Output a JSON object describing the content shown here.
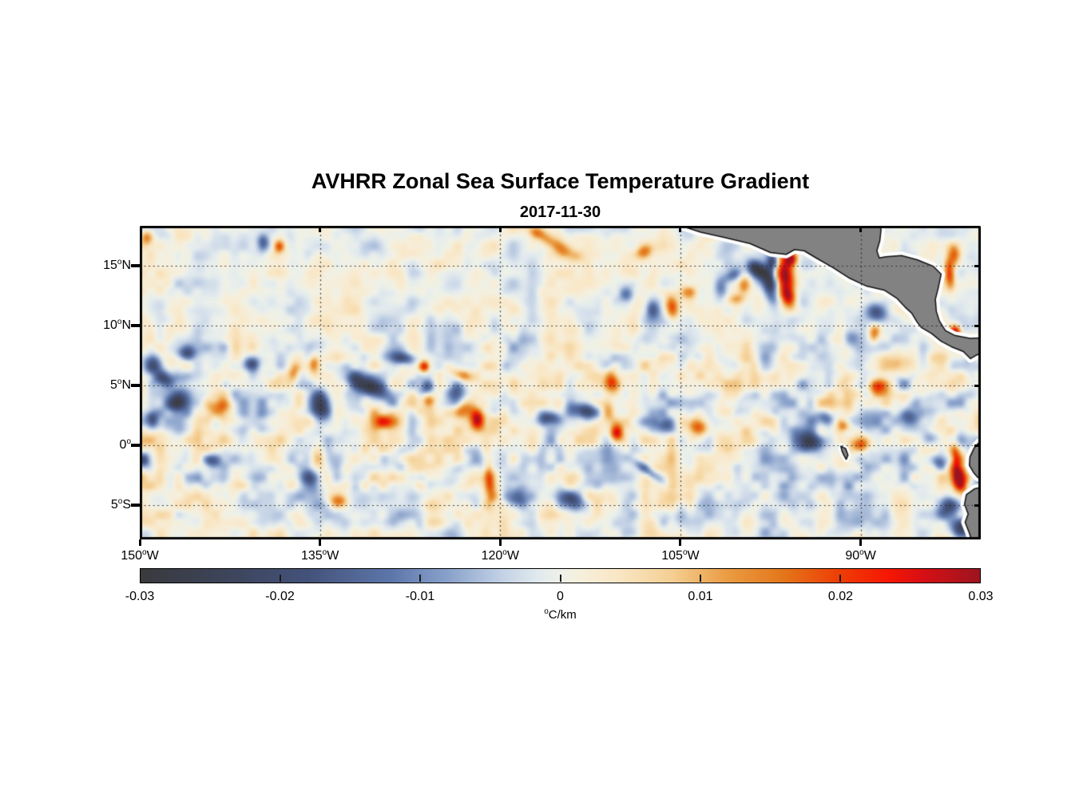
{
  "page": {
    "title": "AVHRR Zonal Sea Surface Temperature Gradient",
    "subtitle": "2017-11-30"
  },
  "chart_data": {
    "type": "heatmap",
    "title": "AVHRR Zonal Sea Surface Temperature Gradient",
    "subtitle": "2017-11-30",
    "xlabel": "",
    "ylabel": "",
    "lon_range": [
      -150,
      -80
    ],
    "lat_range": [
      -7.83,
      18.33
    ],
    "grid_on": true,
    "x_ticks": [
      {
        "num": "150",
        "suf": "W",
        "lon": -150
      },
      {
        "num": "135",
        "suf": "W",
        "lon": -135
      },
      {
        "num": "120",
        "suf": "W",
        "lon": -120
      },
      {
        "num": "105",
        "suf": "W",
        "lon": -105
      },
      {
        "num": "90",
        "suf": "W",
        "lon": -90
      }
    ],
    "y_ticks": [
      {
        "num": "15",
        "suf": "N",
        "lat": 15
      },
      {
        "num": "10",
        "suf": "N",
        "lat": 10
      },
      {
        "num": "5",
        "suf": "N",
        "lat": 5
      },
      {
        "num": "0",
        "suf": "",
        "lat": 0
      },
      {
        "num": "5",
        "suf": "S",
        "lat": -5
      }
    ],
    "grid_lons": [
      -135,
      -120,
      -105,
      -90
    ],
    "grid_lats": [
      15,
      10,
      5,
      0,
      -5
    ],
    "colorbar": {
      "min": -0.03,
      "max": 0.03,
      "tick_labels": [
        "-0.03",
        "-0.02",
        "-0.01",
        "0",
        "0.01",
        "0.02",
        "0.03"
      ],
      "tick_values": [
        -0.03,
        -0.02,
        -0.01,
        0,
        0.01,
        0.02,
        0.03
      ],
      "inner_tick_values": [
        -0.02,
        -0.01,
        0,
        0.01,
        0.02
      ],
      "unit_prefix": "o",
      "unit": "C/km"
    },
    "colormap_stops": [
      [
        -0.03,
        "#3a3a3e"
      ],
      [
        -0.024,
        "#3d4459"
      ],
      [
        -0.018,
        "#44527a"
      ],
      [
        -0.012,
        "#5d77ab"
      ],
      [
        -0.008,
        "#8aa2cb"
      ],
      [
        -0.004,
        "#c5d3e6"
      ],
      [
        -0.0015,
        "#e2eaee"
      ],
      [
        0.0,
        "#edf1e9"
      ],
      [
        0.0015,
        "#f6efdc"
      ],
      [
        0.004,
        "#f9e7c6"
      ],
      [
        0.008,
        "#f4cf93"
      ],
      [
        0.012,
        "#ea9b42"
      ],
      [
        0.016,
        "#e4751a"
      ],
      [
        0.02,
        "#ee3d05"
      ],
      [
        0.0235,
        "#f51603"
      ],
      [
        0.026,
        "#d60f15"
      ],
      [
        0.03,
        "#9c1420"
      ]
    ],
    "land_color": "#828282",
    "coast_color": "#111111",
    "halo_color": "#ffffff",
    "grid_color": "#2b2b2b",
    "frame_color": "#000000",
    "land_polygons": {
      "central_america": [
        [
          -105.4,
          18.9
        ],
        [
          -105.0,
          18.35
        ],
        [
          -103.3,
          17.8
        ],
        [
          -101.5,
          17.4
        ],
        [
          -99.2,
          16.85
        ],
        [
          -97.5,
          16.1
        ],
        [
          -96.2,
          15.95
        ],
        [
          -95.5,
          16.35
        ],
        [
          -94.7,
          16.25
        ],
        [
          -93.7,
          15.65
        ],
        [
          -92.3,
          14.85
        ],
        [
          -90.9,
          13.95
        ],
        [
          -89.5,
          13.3
        ],
        [
          -88.0,
          12.95
        ],
        [
          -87.0,
          12.3
        ],
        [
          -86.3,
          11.55
        ],
        [
          -85.75,
          11.05
        ],
        [
          -85.3,
          10.3
        ],
        [
          -84.95,
          9.85
        ],
        [
          -84.1,
          9.35
        ],
        [
          -83.3,
          8.7
        ],
        [
          -82.45,
          8.25
        ],
        [
          -81.45,
          7.85
        ],
        [
          -80.85,
          7.25
        ],
        [
          -80.35,
          7.55
        ],
        [
          -79.6,
          7.9
        ],
        [
          -79.6,
          9.0
        ],
        [
          -80.9,
          8.95
        ],
        [
          -82.2,
          9.2
        ],
        [
          -82.95,
          9.6
        ],
        [
          -83.45,
          10.4
        ],
        [
          -83.7,
          11.2
        ],
        [
          -83.78,
          12.2
        ],
        [
          -83.55,
          13.1
        ],
        [
          -83.3,
          14.3
        ],
        [
          -83.95,
          14.95
        ],
        [
          -85.3,
          15.5
        ],
        [
          -86.6,
          15.85
        ],
        [
          -87.9,
          15.75
        ],
        [
          -88.45,
          15.65
        ],
        [
          -88.65,
          16.25
        ],
        [
          -88.4,
          17.1
        ],
        [
          -88.3,
          18.0
        ],
        [
          -88.5,
          18.9
        ]
      ],
      "south_america": [
        [
          -79.6,
          0.35
        ],
        [
          -80.1,
          0.3
        ],
        [
          -80.55,
          -0.2
        ],
        [
          -80.9,
          -0.95
        ],
        [
          -80.95,
          -1.65
        ],
        [
          -80.6,
          -2.25
        ],
        [
          -80.25,
          -2.65
        ],
        [
          -79.6,
          -2.8
        ],
        [
          -79.6,
          -3.4
        ],
        [
          -80.5,
          -3.6
        ],
        [
          -81.2,
          -4.1
        ],
        [
          -81.35,
          -4.9
        ],
        [
          -81.05,
          -5.7
        ],
        [
          -81.3,
          -6.4
        ],
        [
          -80.95,
          -7.3
        ],
        [
          -80.6,
          -8.4
        ],
        [
          -79.6,
          -8.4
        ]
      ],
      "galapagos": [
        [
          -91.65,
          -0.05
        ],
        [
          -91.25,
          -0.25
        ],
        [
          -91.05,
          -0.8
        ],
        [
          -91.2,
          -1.15
        ],
        [
          -91.4,
          -0.8
        ],
        [
          -91.55,
          -0.45
        ]
      ]
    },
    "features_format": "[lon, lat, value_C_per_km, radius_lon_deg, radius_lat_deg, rotation_deg]",
    "features": [
      [
        -97.6,
        13.6,
        -0.03,
        0.75,
        1.7,
        12
      ],
      [
        -98.7,
        14.7,
        -0.026,
        1.0,
        0.65,
        -38
      ],
      [
        -97.3,
        15.4,
        -0.022,
        0.5,
        0.8,
        0
      ],
      [
        -96.3,
        14.0,
        0.031,
        0.8,
        1.8,
        4
      ],
      [
        -96.0,
        12.3,
        0.02,
        0.65,
        0.9,
        18
      ],
      [
        -95.8,
        15.6,
        0.026,
        0.55,
        0.6,
        0
      ],
      [
        -99.7,
        13.3,
        0.014,
        0.6,
        0.85,
        0
      ],
      [
        -100.7,
        14.2,
        -0.013,
        0.9,
        0.55,
        25
      ],
      [
        -101.6,
        13.1,
        -0.012,
        0.6,
        0.9,
        0
      ],
      [
        -100.3,
        12.2,
        0.012,
        0.75,
        0.55,
        0
      ],
      [
        -82.6,
        14.3,
        0.021,
        0.45,
        1.5,
        5
      ],
      [
        -82.2,
        15.9,
        0.017,
        0.5,
        0.9,
        0
      ],
      [
        -82.1,
        9.5,
        0.03,
        0.5,
        0.6,
        0
      ],
      [
        -88.7,
        11.1,
        -0.018,
        1.05,
        0.8,
        -20
      ],
      [
        -90.9,
        8.9,
        -0.014,
        0.7,
        0.7,
        0
      ],
      [
        -88.9,
        9.3,
        0.016,
        0.5,
        0.8,
        0
      ],
      [
        -105.7,
        11.5,
        0.019,
        0.6,
        1.15,
        8
      ],
      [
        -107.3,
        11.4,
        -0.016,
        0.65,
        1.0,
        0
      ],
      [
        -115.2,
        16.6,
        0.013,
        2.1,
        0.6,
        -32
      ],
      [
        -117.0,
        17.8,
        0.014,
        0.9,
        0.5,
        -30
      ],
      [
        -131.0,
        4.9,
        -0.027,
        2.2,
        0.8,
        -28
      ],
      [
        -134.9,
        3.2,
        -0.023,
        0.85,
        1.35,
        8
      ],
      [
        -128.1,
        7.3,
        -0.018,
        1.3,
        0.55,
        -8
      ],
      [
        -143.4,
        2.9,
        0.015,
        1.3,
        0.9,
        0
      ],
      [
        -146.9,
        3.6,
        -0.02,
        1.0,
        0.8,
        18
      ],
      [
        -148.9,
        6.7,
        -0.022,
        0.8,
        0.95,
        0
      ],
      [
        -146.1,
        7.7,
        -0.016,
        0.85,
        0.6,
        0
      ],
      [
        -147.9,
        5.6,
        -0.017,
        0.8,
        0.7,
        0
      ],
      [
        -149.4,
        17.4,
        0.015,
        0.55,
        0.65,
        0
      ],
      [
        -138.4,
        16.6,
        0.016,
        0.45,
        0.55,
        0
      ],
      [
        -139.7,
        16.9,
        -0.014,
        0.5,
        0.7,
        0
      ],
      [
        -126.3,
        6.6,
        0.023,
        0.45,
        0.5,
        0
      ],
      [
        -123.3,
        5.9,
        0.014,
        0.95,
        0.5,
        -18
      ],
      [
        -121.9,
        2.1,
        0.027,
        0.6,
        0.85,
        0
      ],
      [
        -122.9,
        3.1,
        0.015,
        0.85,
        0.85,
        0
      ],
      [
        -123.6,
        4.4,
        -0.015,
        0.7,
        0.9,
        0
      ],
      [
        -125.9,
        3.7,
        0.015,
        0.55,
        0.6,
        0
      ],
      [
        -126.1,
        4.9,
        -0.013,
        0.6,
        0.6,
        0
      ],
      [
        -129.8,
        2.0,
        0.015,
        1.0,
        0.65,
        0
      ],
      [
        -135.9,
        -2.8,
        -0.021,
        0.85,
        1.1,
        14
      ],
      [
        -133.4,
        -4.6,
        0.012,
        0.85,
        0.6,
        0
      ],
      [
        -120.9,
        -2.8,
        0.016,
        0.45,
        1.9,
        4
      ],
      [
        -118.6,
        -4.3,
        -0.015,
        1.0,
        0.8,
        0
      ],
      [
        -114.0,
        -4.6,
        -0.02,
        1.3,
        0.85,
        -22
      ],
      [
        -107.7,
        -2.1,
        -0.014,
        1.9,
        0.45,
        -36
      ],
      [
        -110.3,
        1.0,
        0.027,
        0.6,
        0.85,
        0
      ],
      [
        -111.0,
        2.7,
        0.016,
        0.75,
        0.95,
        0
      ],
      [
        -110.7,
        5.4,
        0.018,
        0.65,
        1.15,
        8
      ],
      [
        -112.9,
        2.9,
        -0.022,
        1.5,
        0.75,
        -14
      ],
      [
        -115.9,
        2.3,
        -0.018,
        1.05,
        0.65,
        -8
      ],
      [
        -106.2,
        1.8,
        -0.018,
        0.85,
        0.75,
        0
      ],
      [
        -103.5,
        1.6,
        0.021,
        0.95,
        0.85,
        0
      ],
      [
        -104.3,
        12.8,
        0.013,
        0.8,
        0.6,
        0
      ],
      [
        -109.5,
        12.5,
        -0.012,
        0.7,
        0.8,
        0
      ],
      [
        -108.0,
        16.2,
        0.012,
        0.8,
        0.6,
        20
      ],
      [
        -94.3,
        0.3,
        -0.023,
        1.35,
        0.85,
        -18
      ],
      [
        -93.0,
        2.3,
        -0.016,
        0.85,
        0.75,
        0
      ],
      [
        -90.0,
        0.1,
        0.022,
        0.85,
        0.75,
        0
      ],
      [
        -91.4,
        1.7,
        0.015,
        0.75,
        0.55,
        -28
      ],
      [
        -88.7,
        4.9,
        0.016,
        0.95,
        0.7,
        0
      ],
      [
        -86.0,
        2.4,
        -0.016,
        0.95,
        0.9,
        0
      ],
      [
        -84.1,
        0.6,
        -0.013,
        0.8,
        0.7,
        0
      ],
      [
        -81.8,
        -2.7,
        0.033,
        0.6,
        1.15,
        8
      ],
      [
        -82.1,
        -0.8,
        0.016,
        0.4,
        1.3,
        4
      ],
      [
        -82.7,
        -5.0,
        -0.022,
        1.15,
        1.05,
        -28
      ],
      [
        -81.6,
        -6.9,
        -0.022,
        0.95,
        0.85,
        0
      ],
      [
        -83.4,
        -1.4,
        -0.016,
        0.7,
        0.75,
        0
      ],
      [
        -149.0,
        2.2,
        -0.017,
        0.55,
        0.75,
        0
      ],
      [
        -149.7,
        -1.2,
        -0.015,
        0.5,
        0.65,
        0
      ],
      [
        -144.1,
        -1.3,
        -0.014,
        0.85,
        0.6,
        -18
      ],
      [
        -140.7,
        6.9,
        -0.016,
        0.7,
        0.7,
        0
      ],
      [
        -137.1,
        6.1,
        0.013,
        0.55,
        0.95,
        0
      ],
      [
        -135.5,
        6.8,
        0.012,
        0.45,
        0.85,
        0
      ]
    ],
    "noise": {
      "seed": 7,
      "base_amp": 0.0075,
      "octaves": [
        {
          "period": 6.5,
          "amp": 1.0
        },
        {
          "period": 3.1,
          "amp": 0.55
        }
      ]
    }
  }
}
